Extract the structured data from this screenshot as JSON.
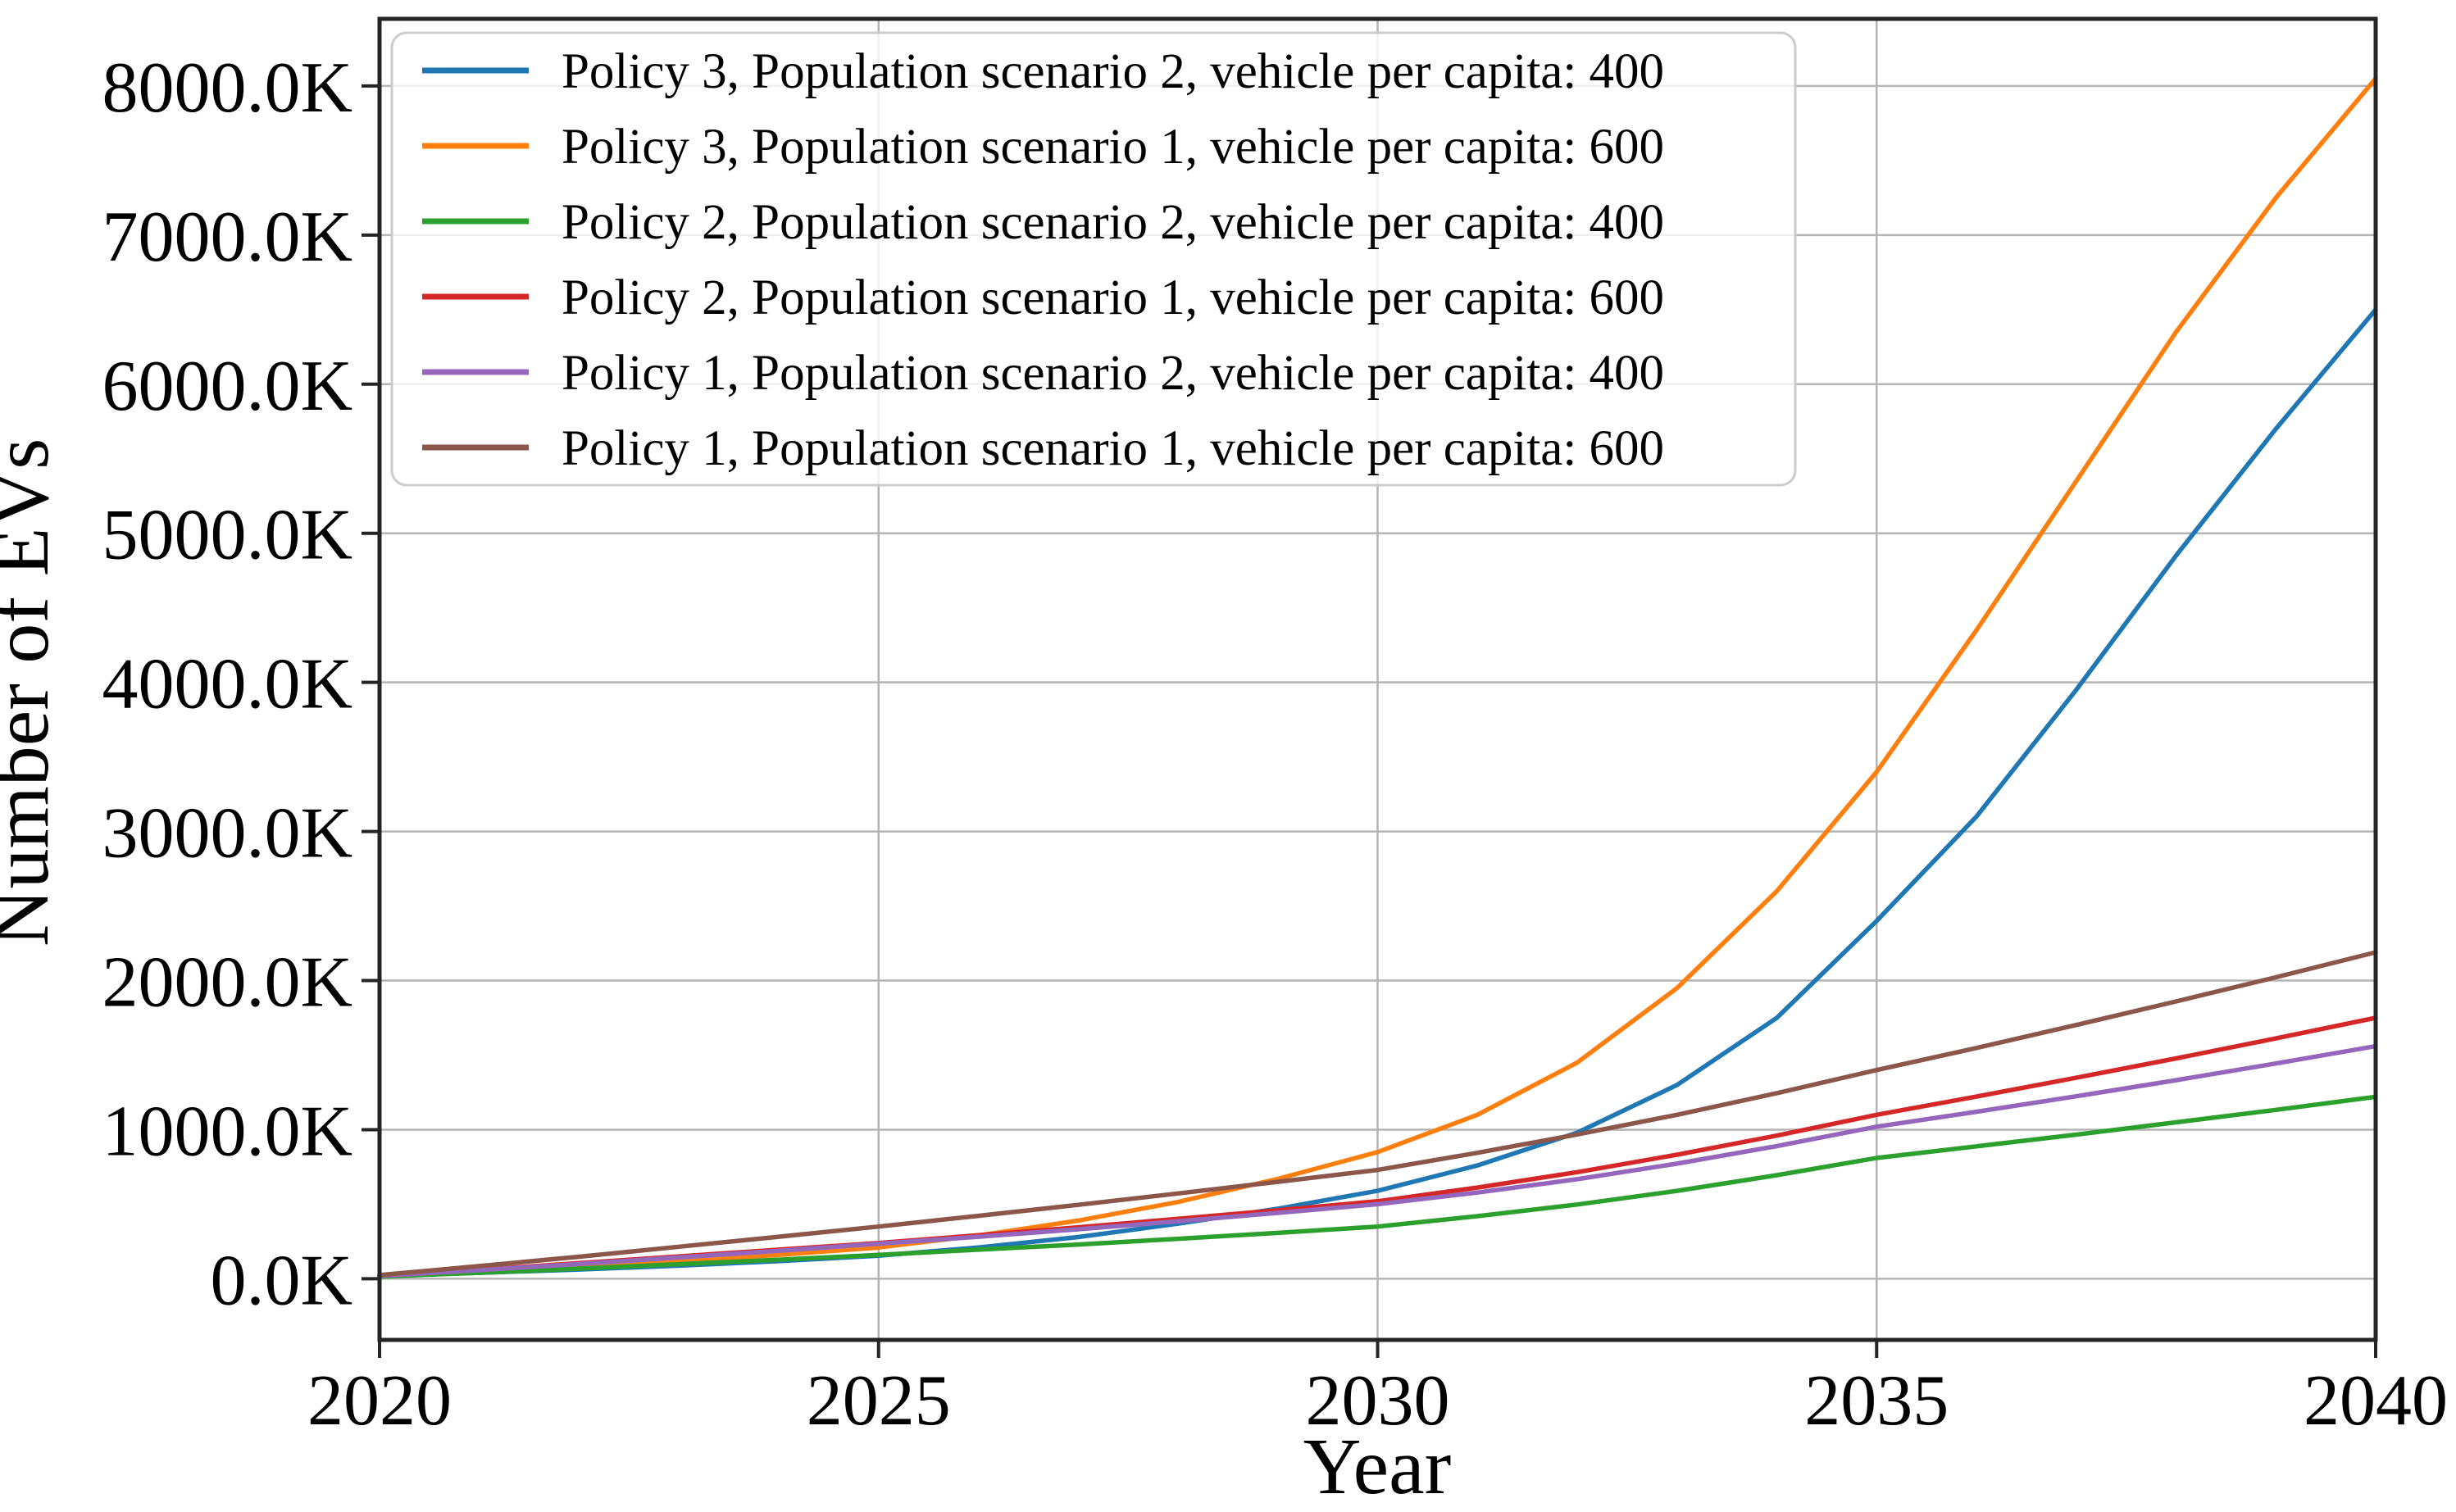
{
  "figure": {
    "y_axis_label": "Number of EVs",
    "x_axis_label": "Year"
  },
  "chart_data": {
    "type": "line",
    "title": "",
    "xlabel": "Year",
    "ylabel": "Number of EVs",
    "grid": true,
    "legend_position": "upper left",
    "unit": "thousands of vehicles (K)",
    "xlim": [
      2020,
      2040
    ],
    "ylim_thousands": [
      -410,
      8450
    ],
    "x_ticks": [
      2020,
      2025,
      2030,
      2035,
      2040
    ],
    "x_tick_labels": [
      "2020",
      "2025",
      "2030",
      "2035",
      "2040"
    ],
    "y_ticks_thousands": [
      0,
      1000,
      2000,
      3000,
      4000,
      5000,
      6000,
      7000,
      8000
    ],
    "y_tick_labels": [
      "0.0K",
      "1000.0K",
      "2000.0K",
      "3000.0K",
      "4000.0K",
      "5000.0K",
      "6000.0K",
      "7000.0K",
      "8000.0K"
    ],
    "x_years": [
      2020,
      2021,
      2022,
      2023,
      2024,
      2025,
      2026,
      2027,
      2028,
      2029,
      2030,
      2031,
      2032,
      2033,
      2034,
      2035,
      2036,
      2037,
      2038,
      2039,
      2040
    ],
    "series": [
      {
        "name": "Policy 3, Population scenario 2, vehicle per capita: 400",
        "color": "#1f77b4",
        "values_thousands": [
          20,
          40,
          62,
          88,
          118,
          155,
          210,
          280,
          370,
          470,
          590,
          760,
          980,
          1300,
          1750,
          2400,
          3100,
          3950,
          4850,
          5700,
          6500
        ]
      },
      {
        "name": "Policy 3, Population scenario 1, vehicle per capita: 600",
        "color": "#ff7f0e",
        "values_thousands": [
          20,
          50,
          85,
          120,
          160,
          210,
          290,
          390,
          515,
          670,
          850,
          1100,
          1450,
          1950,
          2600,
          3400,
          4350,
          5350,
          6350,
          7250,
          8050
        ]
      },
      {
        "name": "Policy 2, Population scenario 2, vehicle per capita: 400",
        "color": "#2ca02c",
        "values_thousands": [
          15,
          40,
          68,
          98,
          128,
          160,
          195,
          230,
          268,
          308,
          350,
          420,
          498,
          590,
          695,
          810,
          888,
          967,
          1049,
          1133,
          1220
        ]
      },
      {
        "name": "Policy 2, Population scenario 1, vehicle per capita: 600",
        "color": "#d62728",
        "values_thousands": [
          20,
          60,
          105,
          150,
          195,
          240,
          292,
          345,
          402,
          460,
          520,
          612,
          715,
          832,
          960,
          1100,
          1222,
          1348,
          1478,
          1612,
          1750
        ]
      },
      {
        "name": "Policy 1, Population scenario 2, vehicle per capita: 400",
        "color": "#9467bd",
        "values_thousands": [
          20,
          58,
          100,
          143,
          188,
          235,
          282,
          332,
          386,
          442,
          500,
          578,
          668,
          772,
          890,
          1020,
          1120,
          1224,
          1332,
          1444,
          1560
        ]
      },
      {
        "name": "Policy 1, Population scenario 1, vehicle per capita: 600",
        "color": "#8c564b",
        "values_thousands": [
          25,
          85,
          148,
          215,
          282,
          350,
          422,
          496,
          572,
          650,
          730,
          845,
          968,
          1100,
          1245,
          1400,
          1548,
          1702,
          1860,
          2022,
          2190
        ]
      }
    ],
    "style": {
      "grid_color": "#b4b4b4",
      "spine_color": "#242424",
      "legend_border_color": "#cccccc",
      "legend_face_color": "#ffffff"
    }
  }
}
